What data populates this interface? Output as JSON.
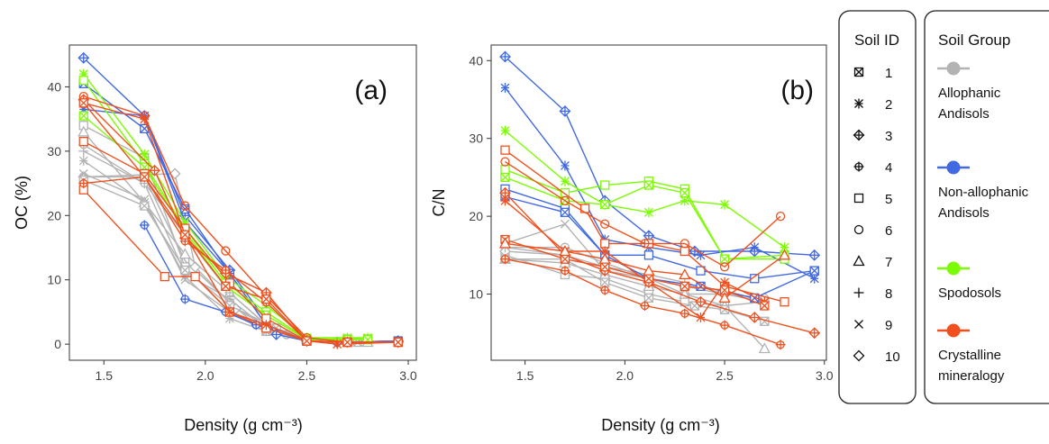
{
  "legend_soil_id": {
    "title": "Soil ID",
    "items": [
      "1",
      "2",
      "3",
      "4",
      "5",
      "6",
      "7",
      "8",
      "9",
      "10"
    ]
  },
  "legend_soil_group": {
    "title": "Soil Group",
    "groups": [
      {
        "lines": [
          "Allophanic",
          "Andisols"
        ],
        "color": "#b3b3b3"
      },
      {
        "lines": [
          "Non-allophanic",
          "Andisols"
        ],
        "color": "#4169e1"
      },
      {
        "lines": [
          "Spodosols"
        ],
        "color": "#7cfc00"
      },
      {
        "lines": [
          "Crystalline",
          "mineralogy"
        ],
        "color": "#f0501e"
      }
    ]
  },
  "chart_data": [
    {
      "type": "line",
      "panel_label": "(a)",
      "xlabel": "Density (g cm⁻³)",
      "ylabel": "OC (%)",
      "xlim": [
        1.33,
        3.04
      ],
      "ylim": [
        -2.5,
        46.5
      ],
      "xticks": [
        1.5,
        2.0,
        2.5,
        3.0
      ],
      "xtick_labels": [
        "1.5",
        "2.0",
        "2.5",
        "3.0"
      ],
      "yticks": [
        0,
        10,
        20,
        30,
        40
      ],
      "ytick_labels": [
        "0",
        "10",
        "20",
        "30",
        "40"
      ],
      "series": [
        {
          "group": "Allophanic",
          "marker": "circle",
          "x": [
            1.4,
            1.7,
            1.9,
            2.12,
            2.25,
            2.4,
            2.5,
            2.65,
            2.8
          ],
          "y": [
            26,
            26,
            13,
            6.5,
            3,
            1.5,
            0.5,
            0.3,
            0.3
          ]
        },
        {
          "group": "Allophanic",
          "marker": "square",
          "x": [
            1.4,
            1.7,
            1.9,
            2.12,
            2.3,
            2.5,
            2.7
          ],
          "y": [
            34,
            29,
            12,
            5,
            2,
            0.5,
            0.3
          ]
        },
        {
          "group": "Allophanic",
          "marker": "star",
          "x": [
            1.4,
            1.7,
            1.9,
            2.12,
            2.3,
            2.5,
            2.7
          ],
          "y": [
            28.5,
            22,
            10.5,
            4,
            2,
            0.5,
            0.3
          ]
        },
        {
          "group": "Allophanic",
          "marker": "diamond",
          "x": [
            1.4,
            1.85,
            1.95,
            2.15,
            2.35,
            2.5,
            2.65
          ],
          "y": [
            26,
            26.5,
            12,
            5.5,
            2,
            0.5,
            0.3
          ]
        },
        {
          "group": "Allophanic",
          "marker": "triangle",
          "x": [
            1.4,
            1.7,
            1.9,
            2.12,
            2.3,
            2.5,
            2.8
          ],
          "y": [
            33,
            22,
            14,
            8,
            3,
            0.8,
            0.3
          ]
        },
        {
          "group": "Allophanic",
          "marker": "plus",
          "x": [
            1.4,
            1.7,
            1.9,
            2.12,
            2.3,
            2.5,
            2.7
          ],
          "y": [
            30,
            25,
            11,
            7,
            2.5,
            0.5,
            0.3
          ]
        },
        {
          "group": "Allophanic",
          "marker": "cross",
          "x": [
            1.4,
            1.7,
            1.9,
            2.12,
            2.3,
            2.5,
            2.7
          ],
          "y": [
            26.5,
            22.5,
            10,
            5,
            2,
            0.5,
            0.3
          ]
        },
        {
          "group": "Allophanic",
          "marker": "boxcross",
          "x": [
            1.4,
            1.7,
            1.9,
            2.12,
            2.35,
            2.5,
            2.75
          ],
          "y": [
            25.5,
            21.5,
            11.5,
            6,
            2.5,
            0.5,
            0.3
          ]
        },
        {
          "group": "Allophanic",
          "marker": "circleplus",
          "x": [
            1.4,
            1.7,
            1.9,
            2.12,
            2.3,
            2.5,
            2.7
          ],
          "y": [
            31,
            25,
            17,
            8,
            3,
            0.6,
            0.3
          ]
        },
        {
          "group": "Non-allophanic",
          "marker": "diamondplus",
          "x": [
            1.4,
            1.7,
            1.9,
            2.12,
            2.35,
            2.5,
            2.65,
            2.95
          ],
          "y": [
            44.5,
            35.5,
            20,
            11.5,
            1.5,
            0.5,
            0.3,
            0.5
          ]
        },
        {
          "group": "Non-allophanic",
          "marker": "boxcross",
          "x": [
            1.4,
            1.7,
            1.9,
            2.12,
            2.3,
            2.5,
            2.7,
            2.95
          ],
          "y": [
            40.5,
            33.5,
            21,
            11,
            3,
            0.5,
            0.3,
            0.5
          ]
        },
        {
          "group": "Non-allophanic",
          "marker": "circleplus",
          "x": [
            1.7,
            1.9,
            2.1,
            2.25,
            2.5,
            2.7,
            2.95
          ],
          "y": [
            18.5,
            7,
            5,
            3,
            0.5,
            0.3,
            0.5
          ]
        },
        {
          "group": "Non-allophanic",
          "marker": "star",
          "x": [
            1.4,
            1.7,
            1.9,
            2.12,
            2.3,
            2.5,
            2.7,
            2.95
          ],
          "y": [
            36.5,
            35.5,
            19,
            11,
            3,
            0.5,
            0.3,
            0.5
          ]
        },
        {
          "group": "Spodosols",
          "marker": "star",
          "x": [
            1.4,
            1.7,
            1.9,
            2.1,
            2.3,
            2.5,
            2.7,
            2.8
          ],
          "y": [
            42,
            29.5,
            19,
            10.5,
            6,
            1,
            1,
            1
          ]
        },
        {
          "group": "Spodosols",
          "marker": "square",
          "x": [
            1.4,
            1.7,
            1.9,
            2.1,
            2.3,
            2.5,
            2.7,
            2.8
          ],
          "y": [
            41,
            28,
            18,
            9.5,
            5,
            0.8,
            0.8,
            0.8
          ]
        },
        {
          "group": "Spodosols",
          "marker": "boxcross",
          "x": [
            1.4,
            1.7,
            1.9,
            2.1,
            2.3,
            2.5,
            2.7,
            2.8
          ],
          "y": [
            35.5,
            27.5,
            17.5,
            9,
            4.5,
            0.7,
            0.7,
            0.7
          ]
        },
        {
          "group": "Crystalline",
          "marker": "square",
          "x": [
            1.4,
            1.8,
            1.95,
            2.12,
            2.3,
            2.5,
            2.7,
            2.95
          ],
          "y": [
            24,
            10.5,
            10.5,
            5,
            2.5,
            0.5,
            0.3,
            0.3
          ]
        },
        {
          "group": "Crystalline",
          "marker": "square",
          "x": [
            1.4,
            1.7,
            1.9,
            2.12,
            2.3,
            2.5,
            2.7,
            2.95
          ],
          "y": [
            31.5,
            26.5,
            18,
            9.5,
            4,
            0.5,
            0.3,
            0.3
          ]
        },
        {
          "group": "Crystalline",
          "marker": "circle",
          "x": [
            1.4,
            1.7,
            1.9,
            2.1,
            2.3,
            2.5,
            2.7,
            2.95
          ],
          "y": [
            38.5,
            35.5,
            21.5,
            14.5,
            7.5,
            1,
            0.3,
            0.3
          ]
        },
        {
          "group": "Crystalline",
          "marker": "star",
          "x": [
            1.4,
            1.7,
            1.9,
            2.12,
            2.3,
            2.5,
            2.65,
            2.95
          ],
          "y": [
            37.5,
            35,
            17,
            5,
            3,
            0.5,
            0,
            0.3
          ]
        },
        {
          "group": "Crystalline",
          "marker": "diamondplus",
          "x": [
            1.4,
            1.75,
            1.9,
            2.1,
            2.3,
            2.5,
            2.7,
            2.95
          ],
          "y": [
            38,
            27,
            16.5,
            11,
            8,
            0.5,
            0.3,
            0.3
          ]
        },
        {
          "group": "Crystalline",
          "marker": "circleplus",
          "x": [
            1.4,
            1.7,
            1.9,
            2.1,
            2.3,
            2.5,
            2.7,
            2.95
          ],
          "y": [
            25,
            26,
            16,
            11.5,
            6.5,
            0.5,
            0.3,
            0.3
          ]
        },
        {
          "group": "Crystalline",
          "marker": "boxcross",
          "x": [
            1.4,
            1.7,
            1.9,
            2.1,
            2.3,
            2.5,
            2.7,
            2.95
          ],
          "y": [
            37.5,
            26,
            17,
            9,
            7,
            0.5,
            0.3,
            0.3
          ]
        }
      ]
    },
    {
      "type": "line",
      "panel_label": "(b)",
      "xlabel": "Density (g cm⁻³)",
      "ylabel": "C/N",
      "xlim": [
        1.33,
        3.01
      ],
      "ylim": [
        1.5,
        42
      ],
      "xticks": [
        1.5,
        2.0,
        2.5,
        3.0
      ],
      "xtick_labels": [
        "1.5",
        "2.0",
        "2.5",
        "3.0"
      ],
      "yticks": [
        10,
        20,
        30,
        40
      ],
      "ytick_labels": [
        "10",
        "20",
        "30",
        "40"
      ],
      "series": [
        {
          "group": "Allophanic",
          "marker": "circle",
          "x": [
            1.4,
            1.7,
            1.9,
            2.12,
            2.3,
            2.5,
            2.7
          ],
          "y": [
            16,
            16,
            14,
            12,
            10,
            10,
            9
          ]
        },
        {
          "group": "Allophanic",
          "marker": "square",
          "x": [
            1.4,
            1.7,
            1.9,
            2.12,
            2.3,
            2.5,
            2.7
          ],
          "y": [
            15,
            12.5,
            12,
            10,
            9,
            8.5,
            9
          ]
        },
        {
          "group": "Allophanic",
          "marker": "cross",
          "x": [
            1.4,
            1.7,
            1.9,
            2.12,
            2.3,
            2.5,
            2.7
          ],
          "y": [
            16.5,
            19,
            13,
            12,
            11,
            10.5,
            9
          ]
        },
        {
          "group": "Allophanic",
          "marker": "triangle",
          "x": [
            1.4,
            1.7,
            1.9,
            2.12,
            2.3,
            2.5,
            2.7
          ],
          "y": [
            14.5,
            14,
            12.5,
            11,
            10,
            8.5,
            3
          ]
        },
        {
          "group": "Allophanic",
          "marker": "diamond",
          "x": [
            1.4,
            1.7,
            1.9,
            2.12,
            2.3,
            2.5,
            2.7
          ],
          "y": [
            15.5,
            15,
            13,
            12,
            11,
            10,
            9.5
          ]
        },
        {
          "group": "Allophanic",
          "marker": "boxcross",
          "x": [
            1.4,
            1.7,
            1.9,
            2.12,
            2.35,
            2.5,
            2.7
          ],
          "y": [
            14.5,
            14.5,
            11.5,
            9.5,
            8.5,
            8,
            6.5
          ]
        },
        {
          "group": "Allophanic",
          "marker": "plus",
          "x": [
            1.4,
            1.7,
            1.9,
            2.12,
            2.3,
            2.5,
            2.7
          ],
          "y": [
            16,
            15,
            13.5,
            12.5,
            11.5,
            10,
            9
          ]
        },
        {
          "group": "Non-allophanic",
          "marker": "diamondplus",
          "x": [
            1.4,
            1.7,
            1.9,
            2.12,
            2.35,
            2.65,
            2.95
          ],
          "y": [
            40.5,
            33.5,
            22,
            17.5,
            15.5,
            15.5,
            15
          ]
        },
        {
          "group": "Non-allophanic",
          "marker": "star",
          "x": [
            1.4,
            1.7,
            1.9,
            2.12,
            2.38,
            2.65,
            2.95
          ],
          "y": [
            36.5,
            26.5,
            17,
            16,
            15,
            16,
            12
          ]
        },
        {
          "group": "Non-allophanic",
          "marker": "square",
          "x": [
            1.4,
            1.7,
            1.9,
            2.12,
            2.38,
            2.65,
            2.95
          ],
          "y": [
            23.5,
            21,
            15,
            15,
            13,
            12,
            13
          ]
        },
        {
          "group": "Non-allophanic",
          "marker": "boxcross",
          "x": [
            1.4,
            1.7,
            1.9,
            2.12,
            2.38,
            2.65,
            2.95
          ],
          "y": [
            22.5,
            20.5,
            15,
            12,
            11,
            9.5,
            13
          ]
        },
        {
          "group": "Spodosols",
          "marker": "star",
          "x": [
            1.4,
            1.7,
            1.9,
            2.12,
            2.3,
            2.5,
            2.8
          ],
          "y": [
            31,
            24.5,
            21.5,
            20.5,
            22,
            21.5,
            16
          ]
        },
        {
          "group": "Spodosols",
          "marker": "square",
          "x": [
            1.4,
            1.7,
            1.9,
            2.12,
            2.3,
            2.5,
            2.8
          ],
          "y": [
            26,
            23,
            24,
            24.5,
            23.5,
            14.5,
            14.5
          ]
        },
        {
          "group": "Spodosols",
          "marker": "boxcross",
          "x": [
            1.4,
            1.7,
            1.9,
            2.12,
            2.3,
            2.5,
            2.8
          ],
          "y": [
            25,
            22,
            21.5,
            24,
            23,
            14.5,
            15
          ]
        },
        {
          "group": "Crystalline",
          "marker": "square",
          "x": [
            1.4,
            1.8,
            1.9,
            2.12,
            2.3,
            2.5,
            2.8
          ],
          "y": [
            28.5,
            21,
            16.5,
            16.5,
            15.5,
            11,
            9
          ]
        },
        {
          "group": "Crystalline",
          "marker": "circle",
          "x": [
            1.4,
            1.7,
            1.9,
            2.1,
            2.3,
            2.5,
            2.78
          ],
          "y": [
            27,
            22,
            19,
            16.5,
            16.5,
            13.5,
            20
          ]
        },
        {
          "group": "Crystalline",
          "marker": "star",
          "x": [
            1.4,
            1.7,
            1.9,
            2.12,
            2.38,
            2.5,
            2.7
          ],
          "y": [
            22,
            15.5,
            15.5,
            11.5,
            7,
            11.5,
            9
          ]
        },
        {
          "group": "Crystalline",
          "marker": "diamondplus",
          "x": [
            1.4,
            1.7,
            1.9,
            2.12,
            2.38,
            2.65,
            2.95
          ],
          "y": [
            23,
            15,
            13,
            11.5,
            9,
            7,
            5
          ]
        },
        {
          "group": "Crystalline",
          "marker": "circleplus",
          "x": [
            1.4,
            1.7,
            1.9,
            2.1,
            2.3,
            2.5,
            2.78
          ],
          "y": [
            14.5,
            13,
            10.5,
            8.5,
            7.5,
            6,
            3.5
          ]
        },
        {
          "group": "Crystalline",
          "marker": "boxcross",
          "x": [
            1.4,
            1.7,
            1.9,
            2.12,
            2.3,
            2.5,
            2.7
          ],
          "y": [
            17,
            14.5,
            13.5,
            12,
            11,
            10.5,
            8.5
          ]
        },
        {
          "group": "Crystalline",
          "marker": "triangle",
          "x": [
            1.4,
            1.7,
            1.9,
            2.12,
            2.3,
            2.5,
            2.8
          ],
          "y": [
            16.5,
            15.5,
            14.5,
            13,
            12.5,
            9.5,
            15
          ]
        }
      ]
    }
  ]
}
